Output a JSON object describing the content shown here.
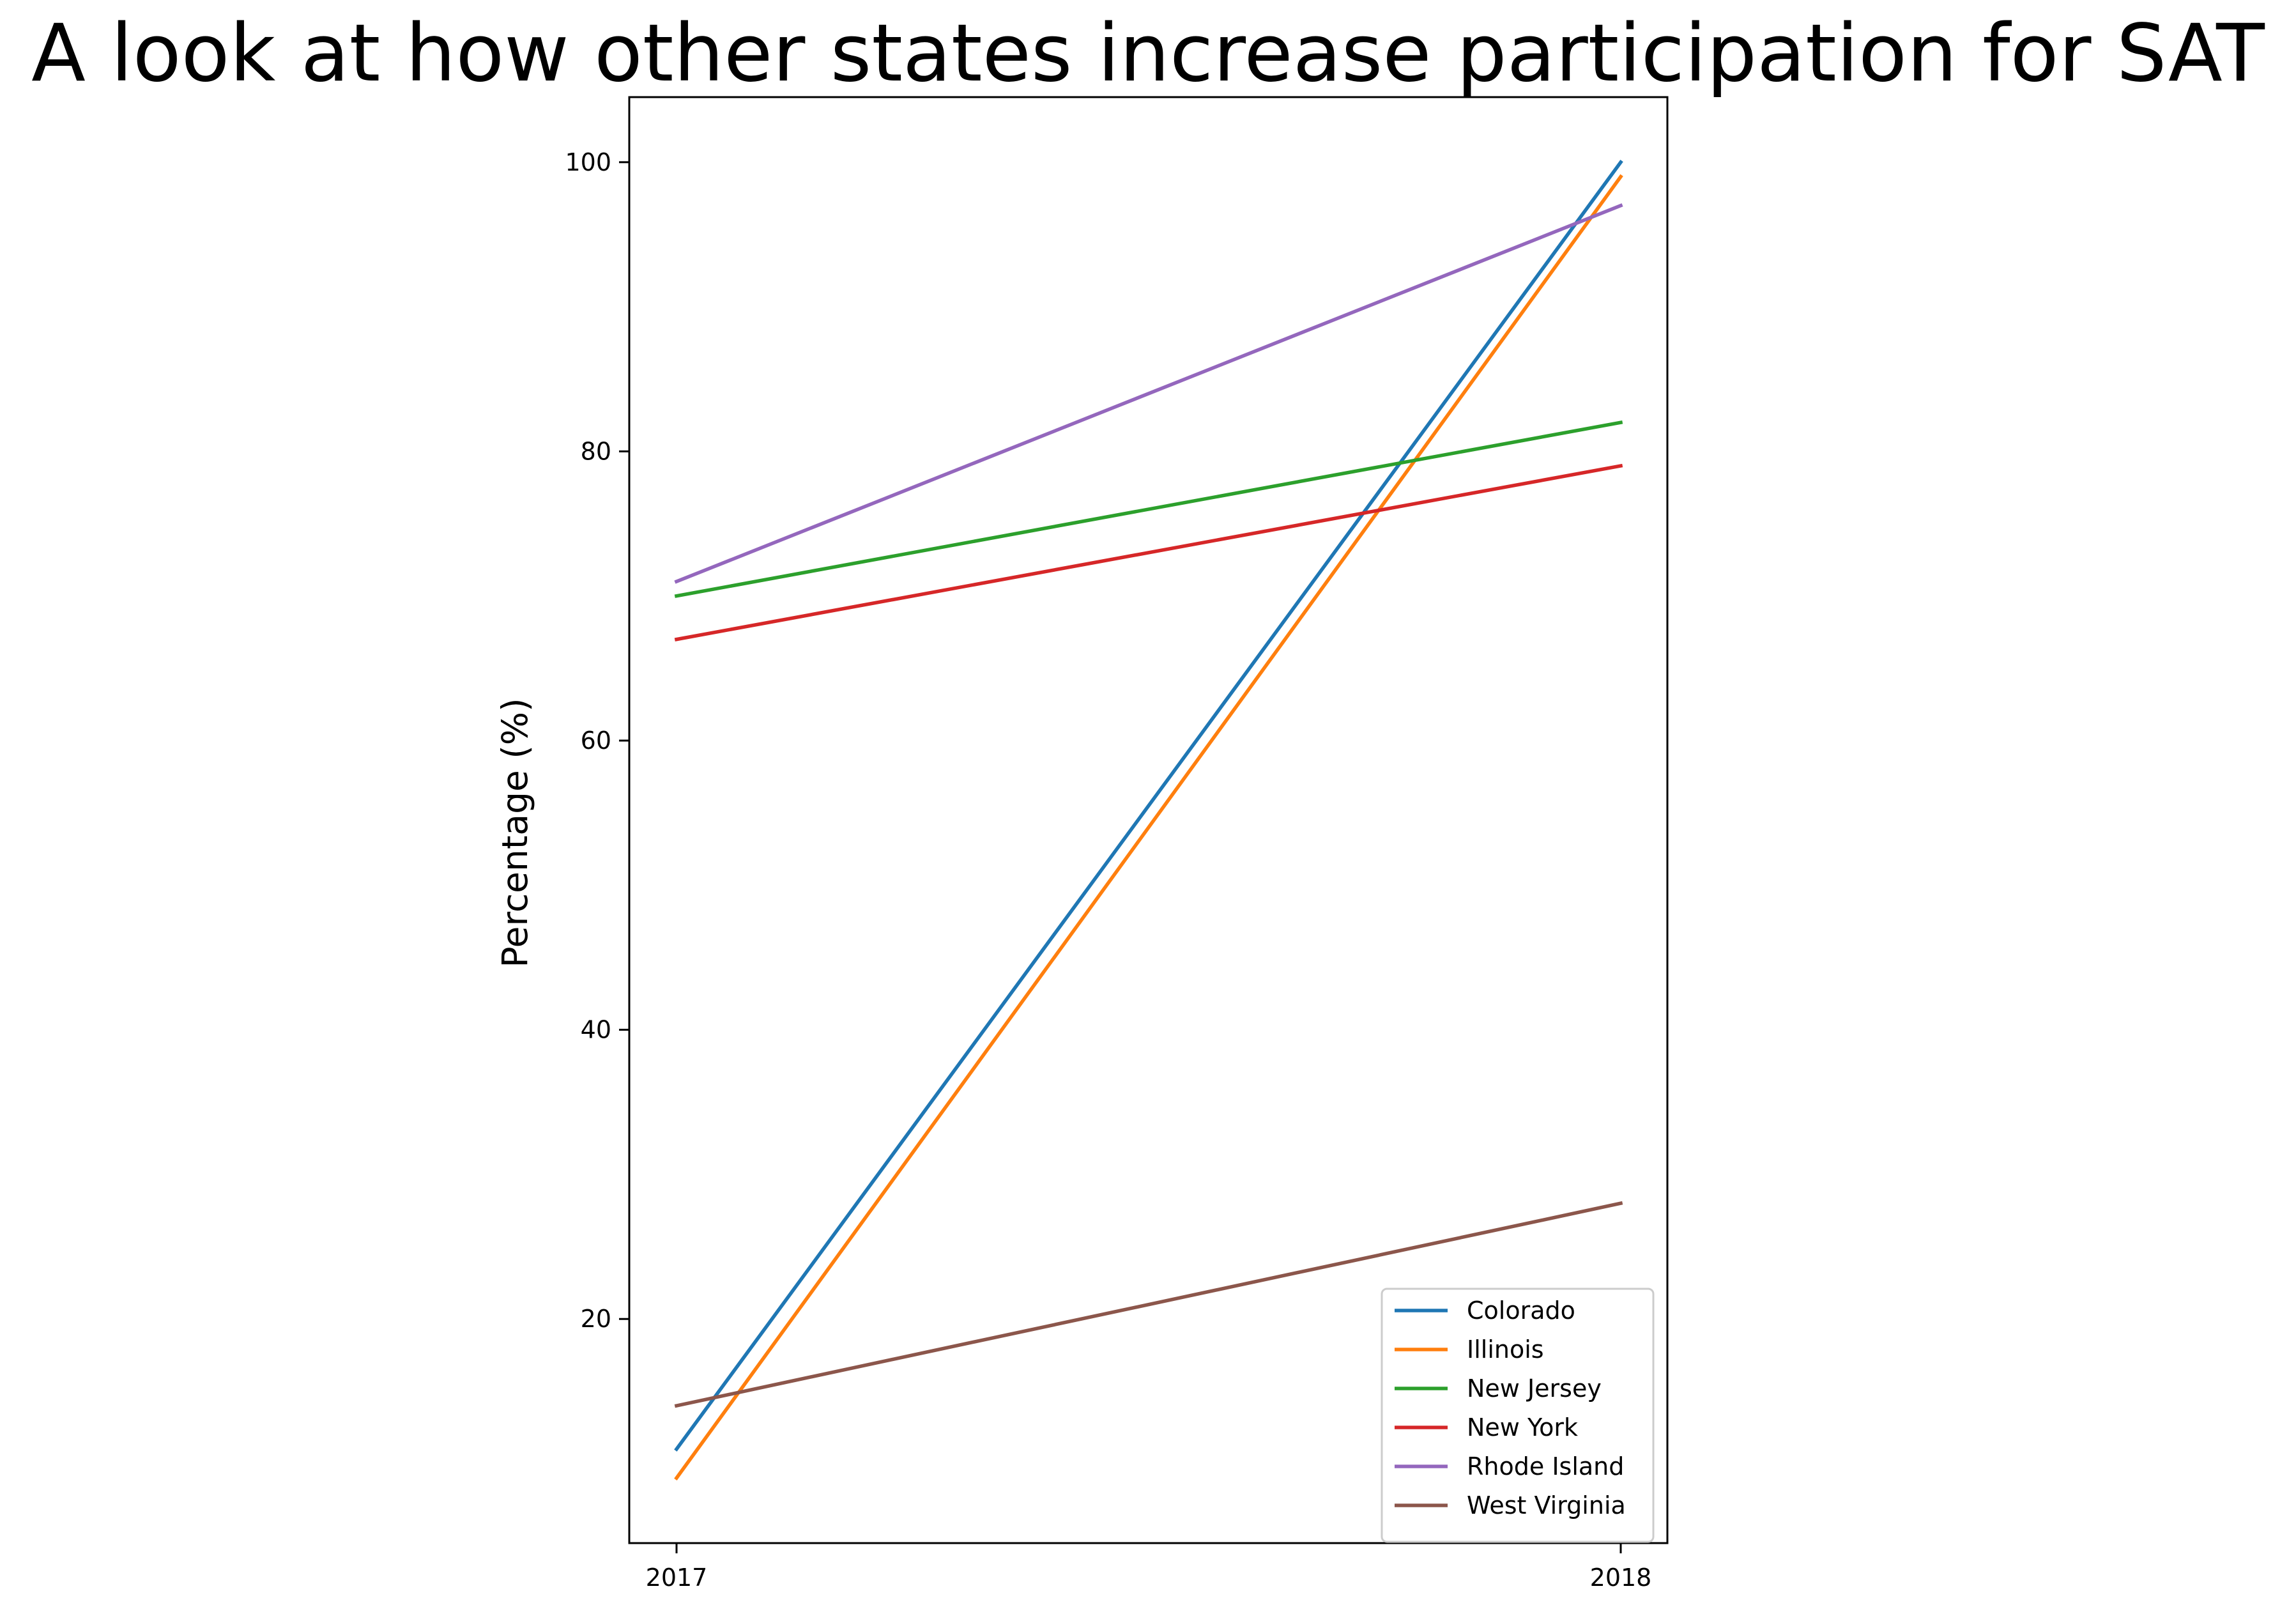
{
  "chart_data": {
    "type": "line",
    "title": "A look at how other states increase participation for SAT",
    "xlabel": "",
    "ylabel": "Percentage (%)",
    "x": [
      2017,
      2018
    ],
    "x_tick_labels": [
      "2017",
      "2018"
    ],
    "y_ticks": [
      20,
      40,
      60,
      80,
      100
    ],
    "y_tick_labels": [
      "20",
      "40",
      "60",
      "80",
      "100"
    ],
    "ylim": [
      4.5,
      104.5
    ],
    "grid": false,
    "legend_position": "lower-right",
    "series": [
      {
        "name": "Colorado",
        "color": "#1f77b4",
        "values": [
          11,
          100
        ]
      },
      {
        "name": "Illinois",
        "color": "#ff7f0e",
        "values": [
          9,
          99
        ]
      },
      {
        "name": "New Jersey",
        "color": "#2ca02c",
        "values": [
          70,
          82
        ]
      },
      {
        "name": "New York",
        "color": "#d62728",
        "values": [
          67,
          79
        ]
      },
      {
        "name": "Rhode Island",
        "color": "#9467bd",
        "values": [
          71,
          97
        ]
      },
      {
        "name": "West Virginia",
        "color": "#8c564b",
        "values": [
          14,
          28
        ]
      }
    ]
  }
}
